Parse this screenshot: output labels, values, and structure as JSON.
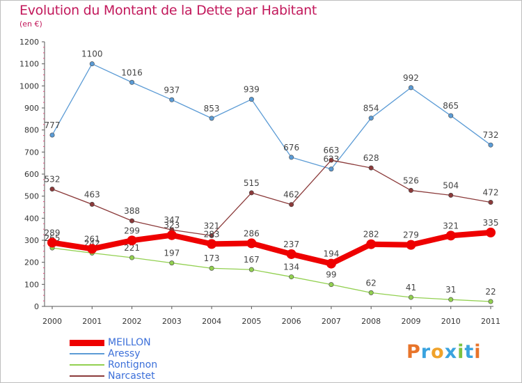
{
  "header": {
    "title": "Evolution du Montant de la Dette par Habitant",
    "unit": "(en €)"
  },
  "logo": {
    "text": "Proxiti",
    "colors": [
      "#e8742a",
      "#3aa3df",
      "#f0a22a",
      "#3aa3df",
      "#7cc242",
      "#3aa3df",
      "#e8742a"
    ]
  },
  "chart_data": {
    "type": "line",
    "title": "Evolution du Montant de la Dette par Habitant",
    "subtitle": "(en €)",
    "xlabel": "",
    "ylabel": "",
    "x": [
      "2000",
      "2001",
      "2002",
      "2003",
      "2004",
      "2005",
      "2006",
      "2007",
      "2008",
      "2009",
      "2010",
      "2011"
    ],
    "ylim": [
      0,
      1200
    ],
    "yticks": [
      0,
      100,
      200,
      300,
      400,
      500,
      600,
      700,
      800,
      900,
      1000,
      1100,
      1200
    ],
    "grid": false,
    "legend_position": "bottom-left",
    "series": [
      {
        "name": "MEILLON",
        "color": "#ee0000",
        "thick": true,
        "values": [
          289,
          261,
          299,
          323,
          283,
          286,
          237,
          194,
          282,
          279,
          321,
          335
        ]
      },
      {
        "name": "Aressy",
        "color": "#5b9bd5",
        "thick": false,
        "values": [
          777,
          1100,
          1016,
          937,
          853,
          939,
          676,
          623,
          854,
          992,
          865,
          732
        ]
      },
      {
        "name": "Rontignon",
        "color": "#92d050",
        "thick": false,
        "values": [
          265,
          242,
          221,
          197,
          173,
          167,
          134,
          99,
          62,
          41,
          31,
          22
        ]
      },
      {
        "name": "Narcastet",
        "color": "#8b3a3a",
        "thick": false,
        "values": [
          532,
          463,
          388,
          347,
          321,
          515,
          462,
          663,
          628,
          526,
          504,
          472
        ]
      }
    ]
  }
}
